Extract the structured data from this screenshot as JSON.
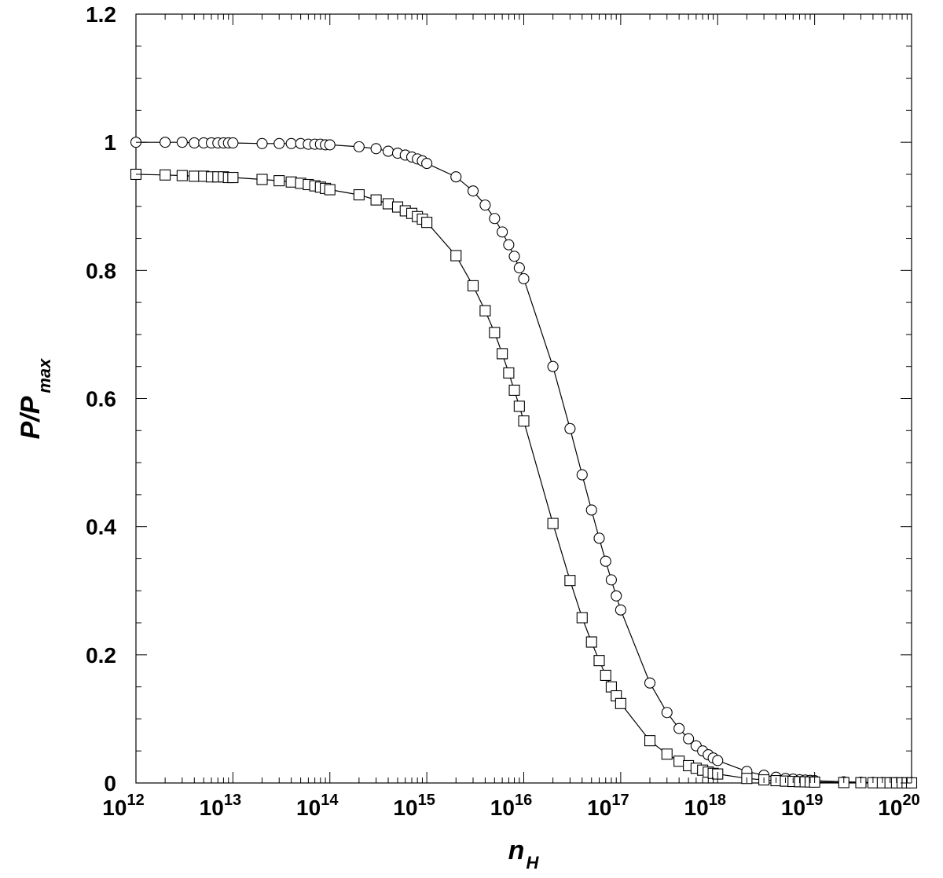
{
  "chart_data": {
    "type": "scatter",
    "x_scale": "log",
    "xlim": [
      "1e12",
      "1e20"
    ],
    "ylim": [
      0,
      1.2
    ],
    "grid": false,
    "legend": "none",
    "xlabel": {
      "main": "n",
      "sub": "H"
    },
    "ylabel": {
      "main": "P/P",
      "sub": "max"
    },
    "x_tick_labels": [
      {
        "base": "10",
        "exp": "12"
      },
      {
        "base": "10",
        "exp": "13"
      },
      {
        "base": "10",
        "exp": "14"
      },
      {
        "base": "10",
        "exp": "15"
      },
      {
        "base": "10",
        "exp": "16"
      },
      {
        "base": "10",
        "exp": "17"
      },
      {
        "base": "10",
        "exp": "18"
      },
      {
        "base": "10",
        "exp": "19"
      },
      {
        "base": "10",
        "exp": "20"
      }
    ],
    "y_tick_labels": [
      "0",
      "0.2",
      "0.4",
      "0.6",
      "0.8",
      "1",
      "1.2"
    ],
    "series": [
      {
        "marker": "circle",
        "points": [
          [
            "1e12",
            1.0
          ],
          [
            "2e12",
            1.0
          ],
          [
            "3e12",
            1.0
          ],
          [
            "4e12",
            0.999
          ],
          [
            "5e12",
            0.999
          ],
          [
            "6e12",
            0.999
          ],
          [
            "7e12",
            0.999
          ],
          [
            "8e12",
            0.999
          ],
          [
            "9e12",
            0.999
          ],
          [
            "1e13",
            0.999
          ],
          [
            "2e13",
            0.998
          ],
          [
            "3e13",
            0.998
          ],
          [
            "4e13",
            0.998
          ],
          [
            "5e13",
            0.998
          ],
          [
            "6e13",
            0.997
          ],
          [
            "7e13",
            0.997
          ],
          [
            "8e13",
            0.997
          ],
          [
            "9e13",
            0.996
          ],
          [
            "1e14",
            0.996
          ],
          [
            "2e14",
            0.993
          ],
          [
            "3e14",
            0.99
          ],
          [
            "4e14",
            0.986
          ],
          [
            "5e14",
            0.983
          ],
          [
            "6e14",
            0.98
          ],
          [
            "7e14",
            0.977
          ],
          [
            "8e14",
            0.974
          ],
          [
            "9e14",
            0.971
          ],
          [
            "1e15",
            0.967
          ],
          [
            "2e15",
            0.946
          ],
          [
            "3e15",
            0.924
          ],
          [
            "4e15",
            0.902
          ],
          [
            "5e15",
            0.881
          ],
          [
            "6e15",
            0.86
          ],
          [
            "7e15",
            0.84
          ],
          [
            "8e15",
            0.822
          ],
          [
            "9e15",
            0.804
          ],
          [
            "1e16",
            0.787
          ],
          [
            "2e16",
            0.65
          ],
          [
            "3e16",
            0.553
          ],
          [
            "4e16",
            0.481
          ],
          [
            "5e16",
            0.426
          ],
          [
            "6e16",
            0.382
          ],
          [
            "7e16",
            0.346
          ],
          [
            "8e16",
            0.317
          ],
          [
            "9e16",
            0.292
          ],
          [
            "1e17",
            0.27
          ],
          [
            "2e17",
            0.156
          ],
          [
            "3e17",
            0.11
          ],
          [
            "4e17",
            0.085
          ],
          [
            "5e17",
            0.069
          ],
          [
            "6e17",
            0.058
          ],
          [
            "7e17",
            0.05
          ],
          [
            "8e17",
            0.044
          ],
          [
            "9e17",
            0.039
          ],
          [
            "1e18",
            0.035
          ],
          [
            "2e18",
            0.018
          ],
          [
            "3e18",
            0.012
          ],
          [
            "4e18",
            0.009
          ],
          [
            "5e18",
            0.007
          ],
          [
            "6e18",
            0.006
          ],
          [
            "7e18",
            0.005
          ],
          [
            "8e18",
            0.0045
          ],
          [
            "9e18",
            0.004
          ],
          [
            "1e19",
            0.0036
          ],
          [
            "2e19",
            0.0018
          ],
          [
            "3e19",
            0.0012
          ],
          [
            "4e19",
            0.0009
          ],
          [
            "5e19",
            0.0007
          ],
          [
            "6e19",
            0.0006
          ],
          [
            "7e19",
            0.0005
          ],
          [
            "8e19",
            0.00045
          ],
          [
            "9e19",
            0.0004
          ],
          [
            "1e20",
            0.00036
          ]
        ]
      },
      {
        "marker": "square",
        "points": [
          [
            "1e12",
            0.95
          ],
          [
            "2e12",
            0.949
          ],
          [
            "3e12",
            0.948
          ],
          [
            "4e12",
            0.947
          ],
          [
            "5e12",
            0.947
          ],
          [
            "6e12",
            0.946
          ],
          [
            "7e12",
            0.946
          ],
          [
            "8e12",
            0.946
          ],
          [
            "9e12",
            0.945
          ],
          [
            "1e13",
            0.945
          ],
          [
            "2e13",
            0.942
          ],
          [
            "3e13",
            0.94
          ],
          [
            "4e13",
            0.938
          ],
          [
            "5e13",
            0.936
          ],
          [
            "6e13",
            0.934
          ],
          [
            "7e13",
            0.932
          ],
          [
            "8e13",
            0.93
          ],
          [
            "9e13",
            0.928
          ],
          [
            "1e14",
            0.926
          ],
          [
            "2e14",
            0.918
          ],
          [
            "3e14",
            0.91
          ],
          [
            "4e14",
            0.904
          ],
          [
            "5e14",
            0.899
          ],
          [
            "6e14",
            0.893
          ],
          [
            "7e14",
            0.889
          ],
          [
            "8e14",
            0.884
          ],
          [
            "9e14",
            0.88
          ],
          [
            "1e15",
            0.875
          ],
          [
            "2e15",
            0.823
          ],
          [
            "3e15",
            0.776
          ],
          [
            "4e15",
            0.737
          ],
          [
            "5e15",
            0.703
          ],
          [
            "6e15",
            0.67
          ],
          [
            "7e15",
            0.64
          ],
          [
            "8e15",
            0.613
          ],
          [
            "9e15",
            0.588
          ],
          [
            "1e16",
            0.565
          ],
          [
            "2e16",
            0.405
          ],
          [
            "3e16",
            0.316
          ],
          [
            "4e16",
            0.258
          ],
          [
            "5e16",
            0.22
          ],
          [
            "6e16",
            0.191
          ],
          [
            "7e16",
            0.168
          ],
          [
            "8e16",
            0.15
          ],
          [
            "9e16",
            0.136
          ],
          [
            "1e17",
            0.124
          ],
          [
            "2e17",
            0.066
          ],
          [
            "3e17",
            0.045
          ],
          [
            "4e17",
            0.034
          ],
          [
            "5e17",
            0.027
          ],
          [
            "6e17",
            0.023
          ],
          [
            "7e17",
            0.02
          ],
          [
            "8e17",
            0.017
          ],
          [
            "9e17",
            0.015
          ],
          [
            "1e18",
            0.014
          ],
          [
            "2e18",
            0.0071
          ],
          [
            "3e18",
            0.0048
          ],
          [
            "4e18",
            0.0036
          ],
          [
            "5e18",
            0.0029
          ],
          [
            "6e18",
            0.0024
          ],
          [
            "7e18",
            0.002
          ],
          [
            "8e18",
            0.0018
          ],
          [
            "9e18",
            0.0016
          ],
          [
            "1e19",
            0.0014
          ],
          [
            "2e19",
            0.0007
          ],
          [
            "3e19",
            0.0005
          ],
          [
            "4e19",
            0.00036
          ],
          [
            "5e19",
            0.00029
          ],
          [
            "6e19",
            0.00024
          ],
          [
            "7e19",
            0.0002
          ],
          [
            "8e19",
            0.00018
          ],
          [
            "9e19",
            0.00016
          ],
          [
            "1e20",
            0.00014
          ]
        ]
      }
    ]
  }
}
